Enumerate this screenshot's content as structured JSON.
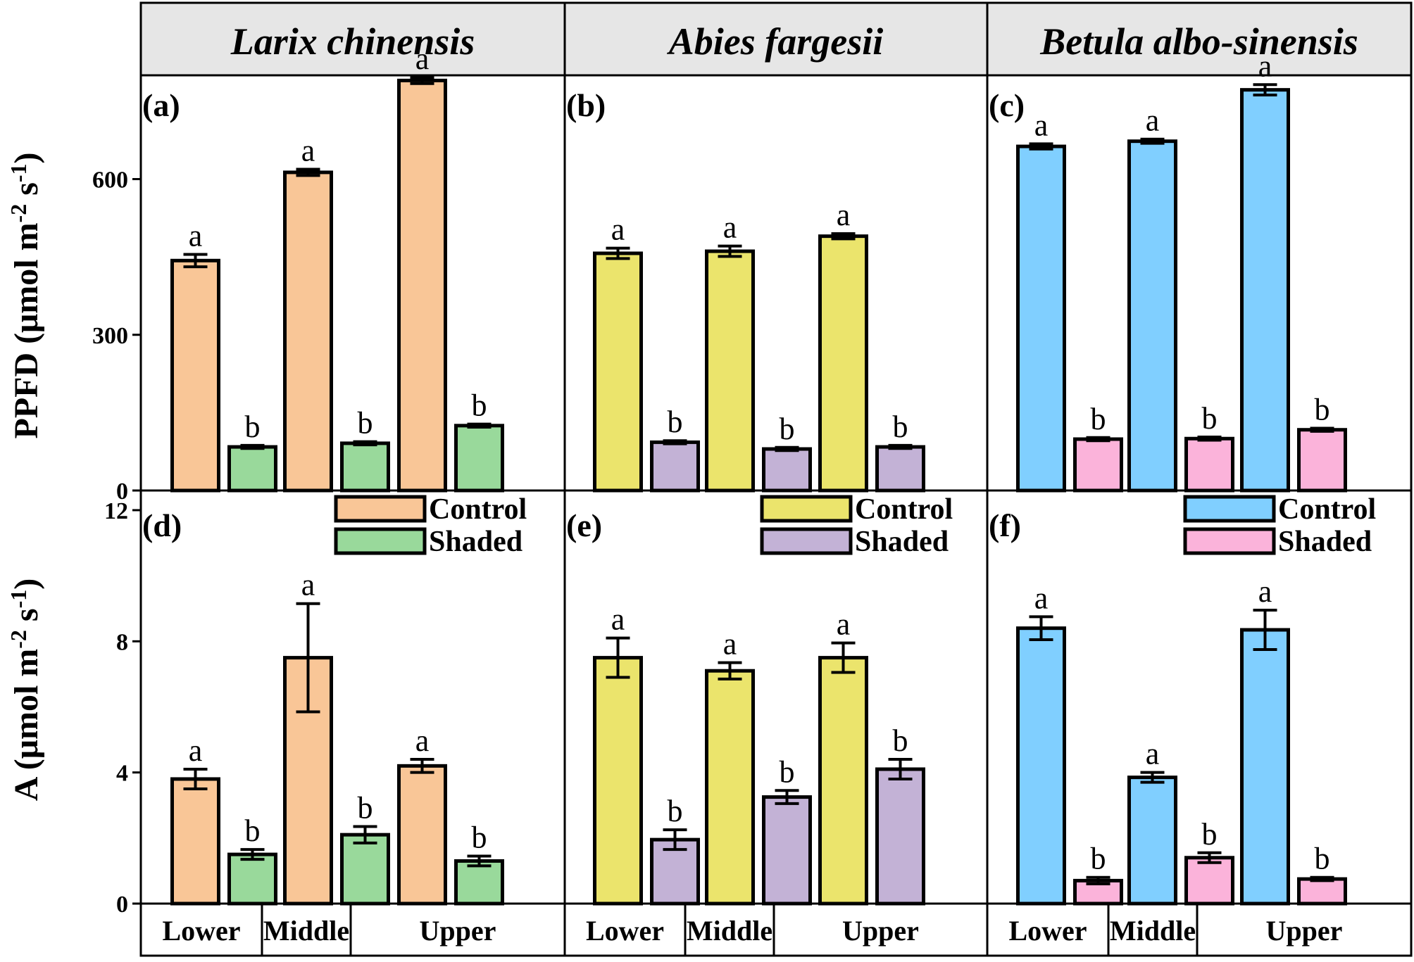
{
  "y_axis_titles": {
    "top": [
      "PPFD (μmol m",
      "-2",
      " s",
      "-1",
      ")"
    ],
    "bottom": [
      "A (μmol m",
      "-2",
      " s",
      "-1",
      ")"
    ]
  },
  "species": [
    "Larix chinensis",
    "Abies fargesii",
    "Betula albo-sinensis"
  ],
  "categories": [
    "Lower",
    "Middle",
    "Upper"
  ],
  "legend_labels": [
    "Control",
    "Shaded"
  ],
  "colors": {
    "Larix chinensis": {
      "control": "#f9c697",
      "shaded": "#99d99b"
    },
    "Abies fargesii": {
      "control": "#ebe46c",
      "shaded": "#c3b2d6"
    },
    "Betula albo-sinensis": {
      "control": "#80cfff",
      "shaded": "#fbb3da"
    }
  },
  "chart_data": [
    {
      "type": "bar",
      "panel": "(a)",
      "species": "Larix chinensis",
      "categories": [
        "Lower",
        "Middle",
        "Upper"
      ],
      "ylim": [
        0,
        800
      ],
      "yticks": [
        0,
        300,
        600
      ],
      "series": [
        {
          "name": "Control",
          "values": [
            443,
            613,
            790
          ],
          "errors": [
            12,
            6,
            6
          ],
          "letters": [
            "a",
            "a",
            "a"
          ]
        },
        {
          "name": "Shaded",
          "values": [
            84,
            91,
            125
          ],
          "errors": [
            3,
            3,
            3
          ],
          "letters": [
            "b",
            "b",
            "b"
          ]
        }
      ]
    },
    {
      "type": "bar",
      "panel": "(b)",
      "species": "Abies fargesii",
      "categories": [
        "Lower",
        "Middle",
        "Upper"
      ],
      "ylim": [
        0,
        800
      ],
      "yticks": [
        0,
        300,
        600
      ],
      "series": [
        {
          "name": "Control",
          "values": [
            457,
            461,
            490
          ],
          "errors": [
            10,
            10,
            5
          ],
          "letters": [
            "a",
            "a",
            "a"
          ]
        },
        {
          "name": "Shaded",
          "values": [
            93,
            80,
            84
          ],
          "errors": [
            3,
            3,
            3
          ],
          "letters": [
            "b",
            "b",
            "b"
          ]
        }
      ]
    },
    {
      "type": "bar",
      "panel": "(c)",
      "species": "Betula albo-sinensis",
      "categories": [
        "Lower",
        "Middle",
        "Upper"
      ],
      "ylim": [
        0,
        800
      ],
      "yticks": [
        0,
        300,
        600
      ],
      "series": [
        {
          "name": "Control",
          "values": [
            663,
            673,
            772
          ],
          "errors": [
            5,
            4,
            10
          ],
          "letters": [
            "a",
            "a",
            "a"
          ]
        },
        {
          "name": "Shaded",
          "values": [
            99,
            100,
            117
          ],
          "errors": [
            3,
            3,
            3
          ],
          "letters": [
            "b",
            "b",
            "b"
          ]
        }
      ]
    },
    {
      "type": "bar",
      "panel": "(d)",
      "species": "Larix chinensis",
      "categories": [
        "Lower",
        "Middle",
        "Upper"
      ],
      "ylim": [
        0,
        12.6
      ],
      "yticks": [
        0,
        4,
        8,
        12
      ],
      "series": [
        {
          "name": "Control",
          "values": [
            3.8,
            7.5,
            4.2
          ],
          "errors": [
            0.3,
            1.65,
            0.2
          ],
          "letters": [
            "a",
            "a",
            "a"
          ]
        },
        {
          "name": "Shaded",
          "values": [
            1.5,
            2.1,
            1.3
          ],
          "errors": [
            0.15,
            0.25,
            0.15
          ],
          "letters": [
            "b",
            "b",
            "b"
          ]
        }
      ]
    },
    {
      "type": "bar",
      "panel": "(e)",
      "species": "Abies fargesii",
      "categories": [
        "Lower",
        "Middle",
        "Upper"
      ],
      "ylim": [
        0,
        12.6
      ],
      "yticks": [
        0,
        4,
        8,
        12
      ],
      "series": [
        {
          "name": "Control",
          "values": [
            7.5,
            7.1,
            7.5
          ],
          "errors": [
            0.6,
            0.25,
            0.45
          ],
          "letters": [
            "a",
            "a",
            "a"
          ]
        },
        {
          "name": "Shaded",
          "values": [
            1.95,
            3.25,
            4.1
          ],
          "errors": [
            0.3,
            0.2,
            0.3
          ],
          "letters": [
            "b",
            "b",
            "b"
          ]
        }
      ]
    },
    {
      "type": "bar",
      "panel": "(f)",
      "species": "Betula albo-sinensis",
      "categories": [
        "Lower",
        "Middle",
        "Upper"
      ],
      "ylim": [
        0,
        12.6
      ],
      "yticks": [
        0,
        4,
        8,
        12
      ],
      "series": [
        {
          "name": "Control",
          "values": [
            8.4,
            3.85,
            8.35
          ],
          "errors": [
            0.35,
            0.15,
            0.6
          ],
          "letters": [
            "a",
            "a",
            "a"
          ]
        },
        {
          "name": "Shaded",
          "values": [
            0.7,
            1.4,
            0.75
          ],
          "errors": [
            0.1,
            0.15,
            0.05
          ],
          "letters": [
            "b",
            "b",
            "b"
          ]
        }
      ]
    }
  ]
}
